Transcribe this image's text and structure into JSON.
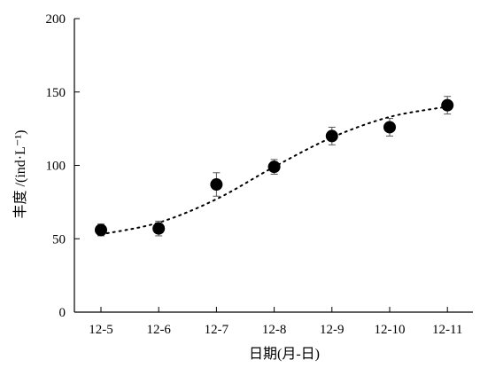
{
  "chart_data": {
    "type": "scatter",
    "xlabel": "日期(月-日)",
    "ylabel": "丰度 /(ind·L⁻¹)",
    "categories": [
      "12-5",
      "12-6",
      "12-7",
      "12-8",
      "12-9",
      "12-10",
      "12-11"
    ],
    "ylim": [
      0,
      200
    ],
    "yticks": [
      0,
      50,
      100,
      150,
      200
    ],
    "grid": false,
    "legend": "none",
    "series": [
      {
        "values": [
          56,
          57,
          87,
          99,
          120,
          126,
          141
        ],
        "errors": [
          4,
          5,
          8,
          5,
          6,
          6,
          6
        ],
        "marker": "filled-circle",
        "color": "#000000"
      }
    ],
    "trendline": {
      "style": "dotted",
      "color": "#000000",
      "values": [
        53,
        61,
        77,
        99,
        119,
        133,
        140
      ]
    }
  }
}
